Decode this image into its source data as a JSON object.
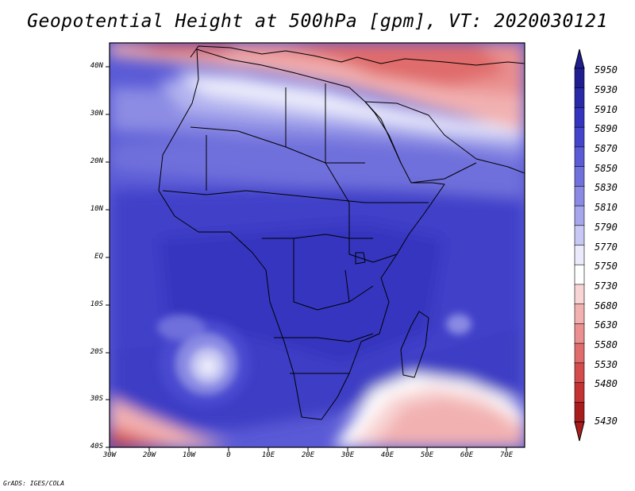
{
  "title": "Geopotential Height at 500hPa [gpm], VT: 2020030121",
  "credit": "GrADS: IGES/COLA",
  "map": {
    "variable": "Geopotential Height at 500hPa",
    "units": "gpm",
    "valid_time": "2020030121",
    "lon_range": [
      -30,
      75
    ],
    "lat_range": [
      -40,
      45
    ],
    "lat_ticks": [
      "40N",
      "30N",
      "20N",
      "10N",
      "EQ",
      "10S",
      "20S",
      "30S",
      "40S"
    ],
    "lon_ticks": [
      "30W",
      "20W",
      "10W",
      "0",
      "10E",
      "20E",
      "30E",
      "40E",
      "50E",
      "60E",
      "70E"
    ]
  },
  "colorbar": {
    "levels": [
      "5950",
      "5930",
      "5910",
      "5890",
      "5870",
      "5850",
      "5830",
      "5810",
      "5790",
      "5770",
      "5750",
      "5730",
      "5680",
      "5630",
      "5580",
      "5530",
      "5480",
      "5430"
    ],
    "colors": [
      "#1f1d90",
      "#2a2aa8",
      "#3434bf",
      "#4545cc",
      "#5b5bd6",
      "#7171dd",
      "#8a8ae4",
      "#a6a6ec",
      "#c8c8f4",
      "#eaeafb",
      "#ffffff",
      "#f8d4d4",
      "#f2b1b1",
      "#ea9090",
      "#e06c6c",
      "#d44c4c",
      "#c43333",
      "#a81c1c"
    ]
  }
}
